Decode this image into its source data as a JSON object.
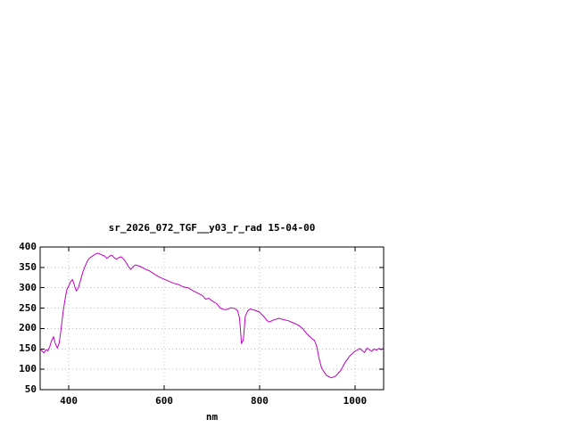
{
  "page": {
    "background": "#ffffff"
  },
  "colors": {
    "axis": "#000000",
    "grid": "#b8b8b8",
    "text": "#000000"
  },
  "chart_data": {
    "type": "line",
    "title": "sr_2026_072_TGF__y03_r_rad 15-04-00",
    "xlabel": "nm",
    "ylabel": "",
    "xlim": [
      340,
      1060
    ],
    "ylim": [
      50,
      400
    ],
    "x_ticks": [
      400,
      600,
      800,
      1000
    ],
    "y_ticks": [
      50,
      100,
      150,
      200,
      250,
      300,
      350,
      400
    ],
    "grid": true,
    "legend_position": "none",
    "line_color": "#c000c0",
    "series": [
      {
        "name": "sr_2026_072_TGF__y03_r_rad",
        "x": [
          340,
          348,
          352,
          356,
          360,
          364,
          368,
          372,
          376,
          380,
          384,
          388,
          392,
          396,
          400,
          404,
          408,
          412,
          416,
          420,
          425,
          430,
          435,
          440,
          445,
          450,
          455,
          460,
          465,
          470,
          475,
          480,
          485,
          490,
          495,
          500,
          505,
          510,
          515,
          520,
          525,
          530,
          535,
          540,
          550,
          560,
          570,
          580,
          590,
          600,
          610,
          620,
          630,
          640,
          650,
          660,
          670,
          680,
          687,
          694,
          700,
          710,
          718,
          724,
          730,
          740,
          748,
          754,
          758,
          762,
          766,
          770,
          775,
          780,
          790,
          800,
          810,
          815,
          820,
          830,
          840,
          850,
          860,
          870,
          880,
          890,
          900,
          910,
          915,
          920,
          925,
          930,
          940,
          950,
          955,
          960,
          970,
          980,
          990,
          1000,
          1010,
          1015,
          1020,
          1025,
          1030,
          1035,
          1040,
          1045,
          1050,
          1055,
          1060
        ],
        "values": [
          150,
          140,
          148,
          145,
          155,
          170,
          180,
          162,
          152,
          165,
          200,
          240,
          270,
          295,
          305,
          315,
          320,
          305,
          292,
          300,
          320,
          340,
          355,
          368,
          374,
          378,
          382,
          385,
          383,
          380,
          378,
          372,
          377,
          380,
          374,
          370,
          374,
          376,
          370,
          362,
          352,
          345,
          352,
          356,
          352,
          346,
          341,
          333,
          326,
          321,
          316,
          311,
          308,
          302,
          300,
          293,
          287,
          281,
          272,
          274,
          268,
          261,
          250,
          247,
          246,
          251,
          249,
          243,
          225,
          163,
          172,
          230,
          243,
          248,
          245,
          240,
          228,
          220,
          216,
          221,
          225,
          222,
          219,
          214,
          209,
          200,
          186,
          175,
          171,
          155,
          125,
          103,
          85,
          79,
          81,
          84,
          97,
          118,
          134,
          144,
          151,
          146,
          141,
          152,
          148,
          144,
          150,
          147,
          151,
          148,
          152
        ]
      }
    ]
  }
}
